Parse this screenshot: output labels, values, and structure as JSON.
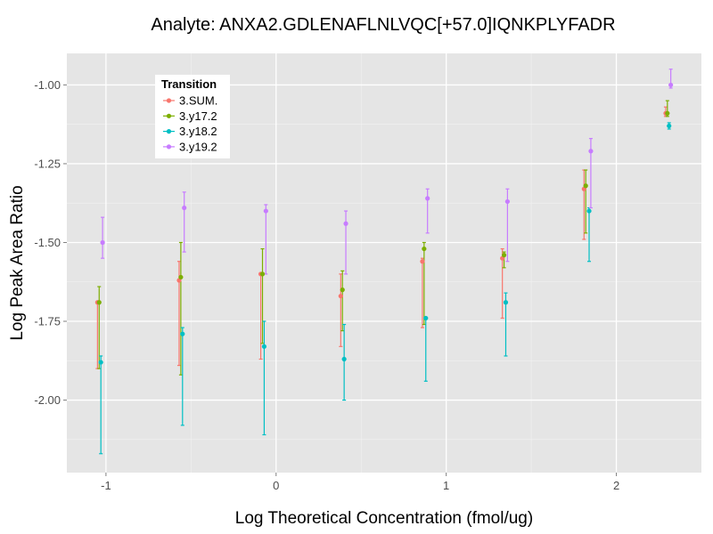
{
  "chart_data": {
    "type": "scatter",
    "title": "Analyte: ANXA2.GDLENAFLNLVQC[+57.0]IQNKPLYFADR",
    "xlabel": "Log Theoretical Concentration (fmol/ug)",
    "ylabel": "Log Peak Area Ratio",
    "xlim": [
      -1.23,
      2.5
    ],
    "ylim": [
      -2.23,
      -0.9
    ],
    "x_ticks": [
      -1,
      0,
      1,
      2
    ],
    "x_tick_labels": [
      "-1",
      "0",
      "1",
      "2"
    ],
    "y_ticks": [
      -2.0,
      -1.75,
      -1.5,
      -1.25,
      -1.0
    ],
    "y_tick_labels": [
      "-2.00",
      "-1.75",
      "-1.50",
      "-1.25",
      "-1.00"
    ],
    "grid": true,
    "legend": {
      "title": "Transition",
      "position": "top-left (inside)"
    },
    "series": [
      {
        "name": "3.SUM.",
        "color": "#F8766D",
        "points": [
          {
            "x": -1.05,
            "y": -1.69,
            "ymin": -1.9,
            "ymax": -1.69
          },
          {
            "x": -0.57,
            "y": -1.62,
            "ymin": -1.89,
            "ymax": -1.56
          },
          {
            "x": -0.09,
            "y": -1.6,
            "ymin": -1.87,
            "ymax": -1.6
          },
          {
            "x": 0.38,
            "y": -1.67,
            "ymin": -1.83,
            "ymax": -1.6
          },
          {
            "x": 0.86,
            "y": -1.56,
            "ymin": -1.77,
            "ymax": -1.55
          },
          {
            "x": 1.33,
            "y": -1.55,
            "ymin": -1.74,
            "ymax": -1.52
          },
          {
            "x": 1.81,
            "y": -1.33,
            "ymin": -1.49,
            "ymax": -1.27
          },
          {
            "x": 2.29,
            "y": -1.09,
            "ymin": -1.1,
            "ymax": -1.07
          }
        ]
      },
      {
        "name": "3.y17.2",
        "color": "#7CAE00",
        "points": [
          {
            "x": -1.04,
            "y": -1.69,
            "ymin": -1.9,
            "ymax": -1.64
          },
          {
            "x": -0.56,
            "y": -1.61,
            "ymin": -1.92,
            "ymax": -1.5
          },
          {
            "x": -0.08,
            "y": -1.6,
            "ymin": -1.82,
            "ymax": -1.52
          },
          {
            "x": 0.39,
            "y": -1.65,
            "ymin": -1.78,
            "ymax": -1.59
          },
          {
            "x": 0.87,
            "y": -1.52,
            "ymin": -1.76,
            "ymax": -1.5
          },
          {
            "x": 1.34,
            "y": -1.54,
            "ymin": -1.58,
            "ymax": -1.53
          },
          {
            "x": 1.82,
            "y": -1.32,
            "ymin": -1.47,
            "ymax": -1.27
          },
          {
            "x": 2.3,
            "y": -1.09,
            "ymin": -1.1,
            "ymax": -1.05
          }
        ]
      },
      {
        "name": "3.y18.2",
        "color": "#00BFC4",
        "points": [
          {
            "x": -1.03,
            "y": -1.88,
            "ymin": -2.17,
            "ymax": -1.86
          },
          {
            "x": -0.55,
            "y": -1.79,
            "ymin": -2.08,
            "ymax": -1.77
          },
          {
            "x": -0.07,
            "y": -1.83,
            "ymin": -2.11,
            "ymax": -1.75
          },
          {
            "x": 0.4,
            "y": -1.87,
            "ymin": -2.0,
            "ymax": -1.76
          },
          {
            "x": 0.88,
            "y": -1.74,
            "ymin": -1.94,
            "ymax": -1.74
          },
          {
            "x": 1.35,
            "y": -1.69,
            "ymin": -1.86,
            "ymax": -1.66
          },
          {
            "x": 1.84,
            "y": -1.4,
            "ymin": -1.56,
            "ymax": -1.39
          },
          {
            "x": 2.31,
            "y": -1.13,
            "ymin": -1.14,
            "ymax": -1.12
          }
        ]
      },
      {
        "name": "3.y19.2",
        "color": "#C77CFF",
        "points": [
          {
            "x": -1.02,
            "y": -1.5,
            "ymin": -1.55,
            "ymax": -1.42
          },
          {
            "x": -0.54,
            "y": -1.39,
            "ymin": -1.53,
            "ymax": -1.34
          },
          {
            "x": -0.06,
            "y": -1.4,
            "ymin": -1.6,
            "ymax": -1.38
          },
          {
            "x": 0.41,
            "y": -1.44,
            "ymin": -1.6,
            "ymax": -1.4
          },
          {
            "x": 0.89,
            "y": -1.36,
            "ymin": -1.47,
            "ymax": -1.33
          },
          {
            "x": 1.36,
            "y": -1.37,
            "ymin": -1.56,
            "ymax": -1.33
          },
          {
            "x": 1.85,
            "y": -1.21,
            "ymin": -1.39,
            "ymax": -1.17
          },
          {
            "x": 2.32,
            "y": -1.0,
            "ymin": -1.01,
            "ymax": -0.95
          }
        ]
      }
    ]
  }
}
